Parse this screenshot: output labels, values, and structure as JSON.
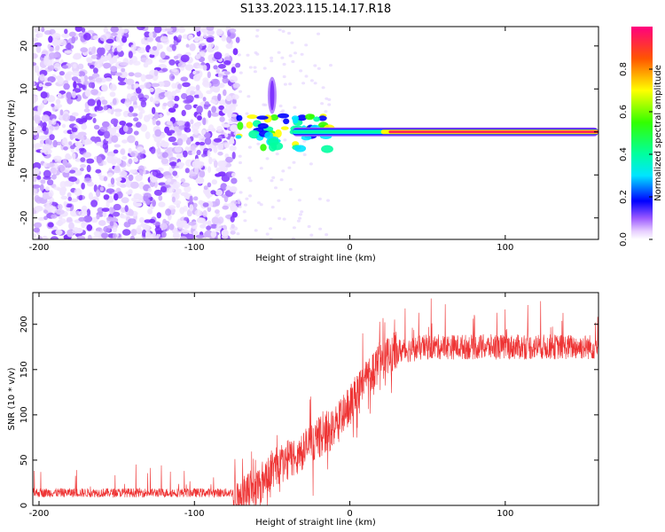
{
  "figure_title": "S133.2023.115.14.17.R18",
  "chart_data": [
    {
      "type": "heatmap",
      "title": "S133.2023.115.14.17.R18",
      "xlabel": "Height of straight line (km)",
      "ylabel": "Frequency (Hz)",
      "xlim": [
        -204,
        160
      ],
      "ylim": [
        -25,
        24.5
      ],
      "x_ticks": [
        -200,
        -100,
        0,
        100
      ],
      "y_ticks": [
        -20,
        -10,
        0,
        10,
        20
      ],
      "x_tick_labels": [
        "-200",
        "-100",
        "0",
        "100"
      ],
      "y_tick_labels": [
        "-20",
        "-10",
        "0",
        "10",
        "20"
      ],
      "noise_region_km": [
        -204,
        -72
      ],
      "signal_band_hz": [
        -1,
        1
      ],
      "signal_onset_km": -72,
      "strong_signal_km": [
        20,
        160
      ],
      "burst_at_km": -50,
      "burst_freq_range_hz": [
        5,
        12
      ],
      "colorbar": {
        "label": "Normalized spectral amplitude",
        "range": [
          0,
          1
        ],
        "ticks": [
          0.0,
          0.2,
          0.4,
          0.6,
          0.8
        ],
        "tick_labels": [
          "0.0",
          "0.2",
          "0.4",
          "0.6",
          "0.8"
        ]
      }
    },
    {
      "type": "line",
      "xlabel": "Height of straight line (km)",
      "ylabel": "SNR (10 * v/v)",
      "xlim": [
        -204,
        160
      ],
      "ylim": [
        0,
        235
      ],
      "x_ticks": [
        -200,
        -100,
        0,
        100
      ],
      "y_ticks": [
        0,
        50,
        100,
        150,
        200
      ],
      "x_tick_labels": [
        "-200",
        "-100",
        "0",
        "100"
      ],
      "y_tick_labels": [
        "0",
        "50",
        "100",
        "150",
        "200"
      ],
      "series_color": "#ee3333",
      "profile": {
        "x": [
          -204,
          -75,
          -60,
          -50,
          -35,
          -20,
          -10,
          0,
          10,
          20,
          30,
          50,
          100,
          140,
          160
        ],
        "y": [
          14,
          14,
          20,
          40,
          55,
          75,
          85,
          110,
          140,
          160,
          170,
          175,
          175,
          175,
          175
        ]
      }
    }
  ]
}
